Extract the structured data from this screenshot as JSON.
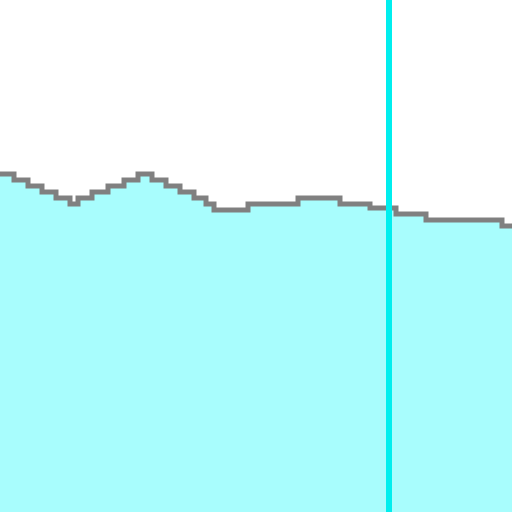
{
  "colors": {
    "sky": "#ffffff",
    "water_fill": "#a8fdfd",
    "water_surface": "#808080",
    "marker_line": "#00eeee"
  },
  "scene": {
    "description_elements": [
      "water-body",
      "water-surface-line",
      "vertical-marker-line"
    ]
  }
}
